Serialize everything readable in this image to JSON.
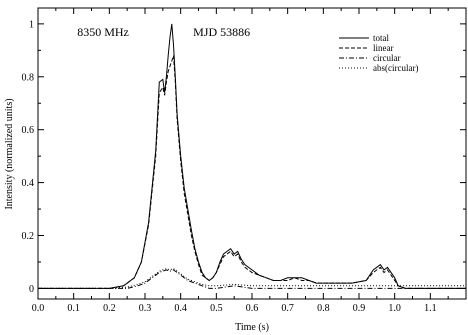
{
  "chart_data": {
    "type": "line",
    "title": "",
    "xlabel": "Time (s)",
    "ylabel": "Intensity (normalized units)",
    "xlim": [
      0.0,
      1.2
    ],
    "ylim": [
      -0.04,
      1.06
    ],
    "grid": false,
    "legend_position": "top-right",
    "x_ticks": [
      0.0,
      0.1,
      0.2,
      0.3,
      0.4,
      0.5,
      0.6,
      0.7,
      0.8,
      0.9,
      1.0,
      1.1
    ],
    "x_tick_labels": [
      "0.0",
      "0.1",
      "0.2",
      "0.3",
      "0.4",
      "0.5",
      "0.6",
      "0.7",
      "0.8",
      "0.9",
      "1.0",
      "1.1"
    ],
    "y_ticks": [
      0,
      0.2,
      0.4,
      0.6,
      0.8,
      1.0
    ],
    "y_tick_labels": [
      "0",
      "0.2",
      "0.4",
      "0.6",
      "0.8",
      "1"
    ],
    "annotations": [
      {
        "text": "8350 MHz",
        "x": 0.11,
        "y": 0.955
      },
      {
        "text": "MJD 53886",
        "x": 0.435,
        "y": 0.955
      }
    ],
    "series": [
      {
        "name": "total",
        "dash": "solid",
        "x": [
          0.0,
          0.1,
          0.2,
          0.24,
          0.27,
          0.29,
          0.31,
          0.33,
          0.34,
          0.35,
          0.355,
          0.36,
          0.365,
          0.37,
          0.375,
          0.38,
          0.385,
          0.39,
          0.4,
          0.41,
          0.42,
          0.43,
          0.44,
          0.45,
          0.46,
          0.47,
          0.48,
          0.49,
          0.5,
          0.51,
          0.52,
          0.53,
          0.54,
          0.55,
          0.56,
          0.57,
          0.58,
          0.6,
          0.62,
          0.64,
          0.66,
          0.68,
          0.7,
          0.72,
          0.74,
          0.76,
          0.78,
          0.8,
          0.84,
          0.88,
          0.92,
          0.94,
          0.95,
          0.96,
          0.97,
          0.98,
          1.0,
          1.01,
          1.03,
          1.1,
          1.2
        ],
        "y": [
          0.0,
          0.0,
          0.0,
          0.01,
          0.04,
          0.1,
          0.25,
          0.52,
          0.78,
          0.79,
          0.74,
          0.8,
          0.88,
          0.95,
          1.0,
          0.92,
          0.8,
          0.66,
          0.5,
          0.38,
          0.3,
          0.22,
          0.15,
          0.1,
          0.06,
          0.04,
          0.03,
          0.04,
          0.06,
          0.1,
          0.13,
          0.14,
          0.15,
          0.13,
          0.14,
          0.11,
          0.09,
          0.07,
          0.05,
          0.04,
          0.03,
          0.03,
          0.04,
          0.04,
          0.04,
          0.03,
          0.02,
          0.02,
          0.02,
          0.02,
          0.03,
          0.07,
          0.08,
          0.09,
          0.07,
          0.08,
          0.04,
          0.01,
          0.0,
          0.0,
          0.0
        ]
      },
      {
        "name": "linear",
        "dash": "dashed",
        "x": [
          0.0,
          0.1,
          0.2,
          0.24,
          0.27,
          0.29,
          0.31,
          0.33,
          0.34,
          0.35,
          0.355,
          0.36,
          0.365,
          0.37,
          0.375,
          0.38,
          0.385,
          0.39,
          0.4,
          0.41,
          0.42,
          0.43,
          0.44,
          0.45,
          0.46,
          0.47,
          0.48,
          0.49,
          0.5,
          0.51,
          0.52,
          0.53,
          0.54,
          0.55,
          0.56,
          0.57,
          0.58,
          0.6,
          0.62,
          0.64,
          0.66,
          0.68,
          0.7,
          0.72,
          0.74,
          0.76,
          0.78,
          0.8,
          0.84,
          0.88,
          0.92,
          0.94,
          0.95,
          0.96,
          0.97,
          0.98,
          1.0,
          1.01,
          1.03,
          1.1,
          1.2
        ],
        "y": [
          0.0,
          0.0,
          0.0,
          0.01,
          0.04,
          0.1,
          0.24,
          0.5,
          0.74,
          0.76,
          0.73,
          0.78,
          0.82,
          0.84,
          0.86,
          0.88,
          0.78,
          0.64,
          0.48,
          0.36,
          0.28,
          0.2,
          0.14,
          0.09,
          0.05,
          0.04,
          0.03,
          0.04,
          0.06,
          0.09,
          0.12,
          0.13,
          0.14,
          0.12,
          0.13,
          0.1,
          0.08,
          0.06,
          0.05,
          0.04,
          0.03,
          0.03,
          0.03,
          0.04,
          0.03,
          0.03,
          0.02,
          0.02,
          0.02,
          0.02,
          0.03,
          0.06,
          0.07,
          0.08,
          0.06,
          0.07,
          0.03,
          0.01,
          0.0,
          0.0,
          0.0
        ]
      },
      {
        "name": "circular",
        "dash": "dashdot",
        "x": [
          0.0,
          0.2,
          0.25,
          0.28,
          0.3,
          0.32,
          0.34,
          0.35,
          0.36,
          0.37,
          0.38,
          0.39,
          0.4,
          0.42,
          0.44,
          0.46,
          0.48,
          0.5,
          0.55,
          0.6,
          0.8,
          1.0,
          1.2
        ],
        "y": [
          0.0,
          0.0,
          0.0,
          0.01,
          0.02,
          0.04,
          0.06,
          0.065,
          0.07,
          0.065,
          0.07,
          0.06,
          0.05,
          0.03,
          0.02,
          0.01,
          0.0,
          0.0,
          0.01,
          0.0,
          0.0,
          0.0,
          0.0
        ]
      },
      {
        "name": "abs(circular)",
        "dash": "dotted",
        "x": [
          0.0,
          0.2,
          0.25,
          0.28,
          0.3,
          0.32,
          0.34,
          0.35,
          0.36,
          0.37,
          0.38,
          0.39,
          0.4,
          0.42,
          0.44,
          0.46,
          0.48,
          0.5,
          0.55,
          0.6,
          0.8,
          1.0,
          1.2
        ],
        "y": [
          0.0,
          0.0,
          0.005,
          0.015,
          0.025,
          0.045,
          0.065,
          0.07,
          0.075,
          0.07,
          0.075,
          0.065,
          0.055,
          0.035,
          0.025,
          0.015,
          0.01,
          0.01,
          0.015,
          0.01,
          0.01,
          0.01,
          0.01
        ]
      }
    ]
  }
}
